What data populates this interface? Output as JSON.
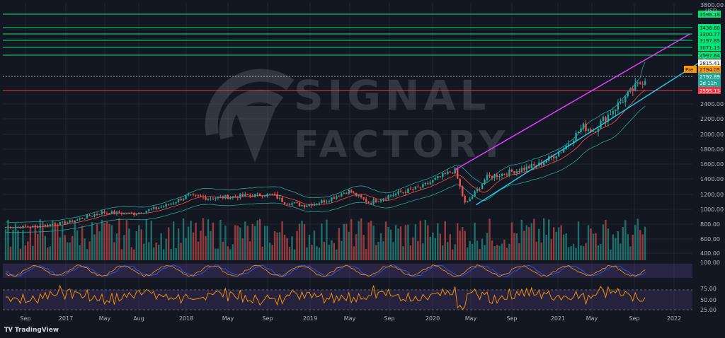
{
  "brand": {
    "name": "TradingView",
    "logo_icon": "tradingview-logo-icon"
  },
  "watermark": {
    "line1": "SIGNAL",
    "line2": "FACTORY"
  },
  "colors": {
    "background": "#131722",
    "up": "#26a69a",
    "down": "#ef5350",
    "resistance": "#00e676",
    "channel_upper": "#e040fb",
    "channel_lower": "#26c6da",
    "last_price_tag": "#26a69a",
    "support_tag": "#f23645",
    "pre_tag": "#ff9800"
  },
  "chart_data": {
    "type": "candlestick",
    "interval": "weekly",
    "currency": "USD",
    "y_axis": {
      "unit": "USD",
      "ylim": [
        100,
        3800
      ],
      "ticks": [
        400,
        600,
        800,
        1000,
        1200,
        1400,
        1600,
        1800,
        2000,
        2200,
        2400
      ],
      "top_label": "3800.00"
    },
    "x_axis": {
      "labels": [
        "Sep",
        "2017",
        "May",
        "Aug",
        "2018",
        "May",
        "Sep",
        "2019",
        "May",
        "Sep",
        "2020",
        "May",
        "Sep",
        "2021",
        "May",
        "Sep",
        "2022"
      ]
    },
    "resistance_levels": [
      "3596.18",
      "3436.60",
      "3300.77",
      "3197.85",
      "3071.15",
      "2997.64"
    ],
    "white_level": "2815.41",
    "pre_market": {
      "label": "Pre",
      "value": "2794.05"
    },
    "last_price": {
      "value": "2792.89",
      "countdown": "3d 11h"
    },
    "support_level": "2595.13",
    "trendlines": {
      "upper_channel": [
        [
          "2020-02",
          1520
        ],
        [
          "2021-12",
          3300
        ]
      ],
      "lower_channel": [
        [
          "2020-04",
          1060
        ],
        [
          "2022-02",
          3000
        ]
      ]
    },
    "price_anchors": [
      [
        "2016-08",
        760
      ],
      [
        "2016-11",
        770
      ],
      [
        "2017-02",
        830
      ],
      [
        "2017-05",
        960
      ],
      [
        "2017-08",
        940
      ],
      [
        "2017-11",
        1050
      ],
      [
        "2018-01",
        1180
      ],
      [
        "2018-03",
        1150
      ],
      [
        "2018-06",
        1180
      ],
      [
        "2018-09",
        1200
      ],
      [
        "2018-10",
        1100
      ],
      [
        "2018-12",
        1050
      ],
      [
        "2019-02",
        1120
      ],
      [
        "2019-04",
        1250
      ],
      [
        "2019-06",
        1090
      ],
      [
        "2019-08",
        1190
      ],
      [
        "2019-11",
        1300
      ],
      [
        "2020-01",
        1450
      ],
      [
        "2020-02",
        1520
      ],
      [
        "2020-03",
        1060
      ],
      [
        "2020-05",
        1420
      ],
      [
        "2020-08",
        1520
      ],
      [
        "2020-10",
        1600
      ],
      [
        "2020-12",
        1780
      ],
      [
        "2021-02",
        2100
      ],
      [
        "2021-03",
        2050
      ],
      [
        "2021-05",
        2350
      ],
      [
        "2021-07",
        2650
      ],
      [
        "2021-08",
        2793
      ]
    ],
    "stochastic": {
      "levels": [
        20,
        80
      ]
    },
    "rsi": {
      "ticks": [
        "75.00",
        "50.00",
        "25.00"
      ],
      "levels": [
        70,
        30
      ]
    }
  }
}
